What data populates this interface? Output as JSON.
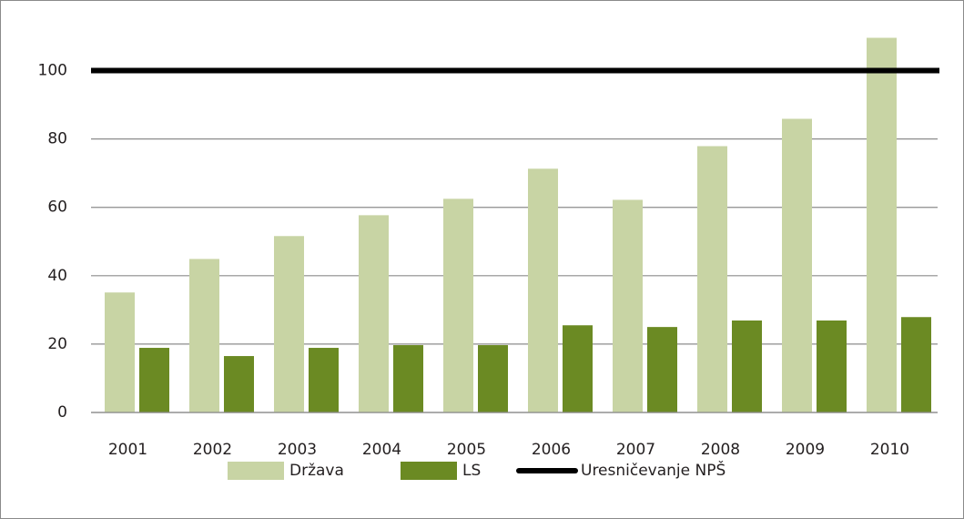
{
  "chart_data": {
    "type": "bar",
    "categories": [
      "2001",
      "2002",
      "2003",
      "2004",
      "2005",
      "2006",
      "2007",
      "2008",
      "2009",
      "2010"
    ],
    "series": [
      {
        "name": "Država",
        "color": "#c8d4a4",
        "values": [
          35.1,
          44.9,
          51.6,
          57.7,
          62.5,
          71.3,
          62.2,
          77.9,
          85.9,
          109.6
        ]
      },
      {
        "name": "LS",
        "color": "#6b8a23",
        "values": [
          18.9,
          16.5,
          18.9,
          19.7,
          19.7,
          25.5,
          25,
          26.9,
          26.9,
          27.9
        ]
      },
      {
        "name": "Uresničevanje NPŠ",
        "color": "#000000",
        "type": "line",
        "values": [
          100,
          100,
          100,
          100,
          100,
          100,
          100,
          100,
          100,
          100
        ]
      }
    ],
    "ylim": [
      0,
      110
    ],
    "yticks": [
      0,
      20,
      40,
      60,
      80,
      100
    ],
    "grid": true,
    "legend": "bottom"
  }
}
